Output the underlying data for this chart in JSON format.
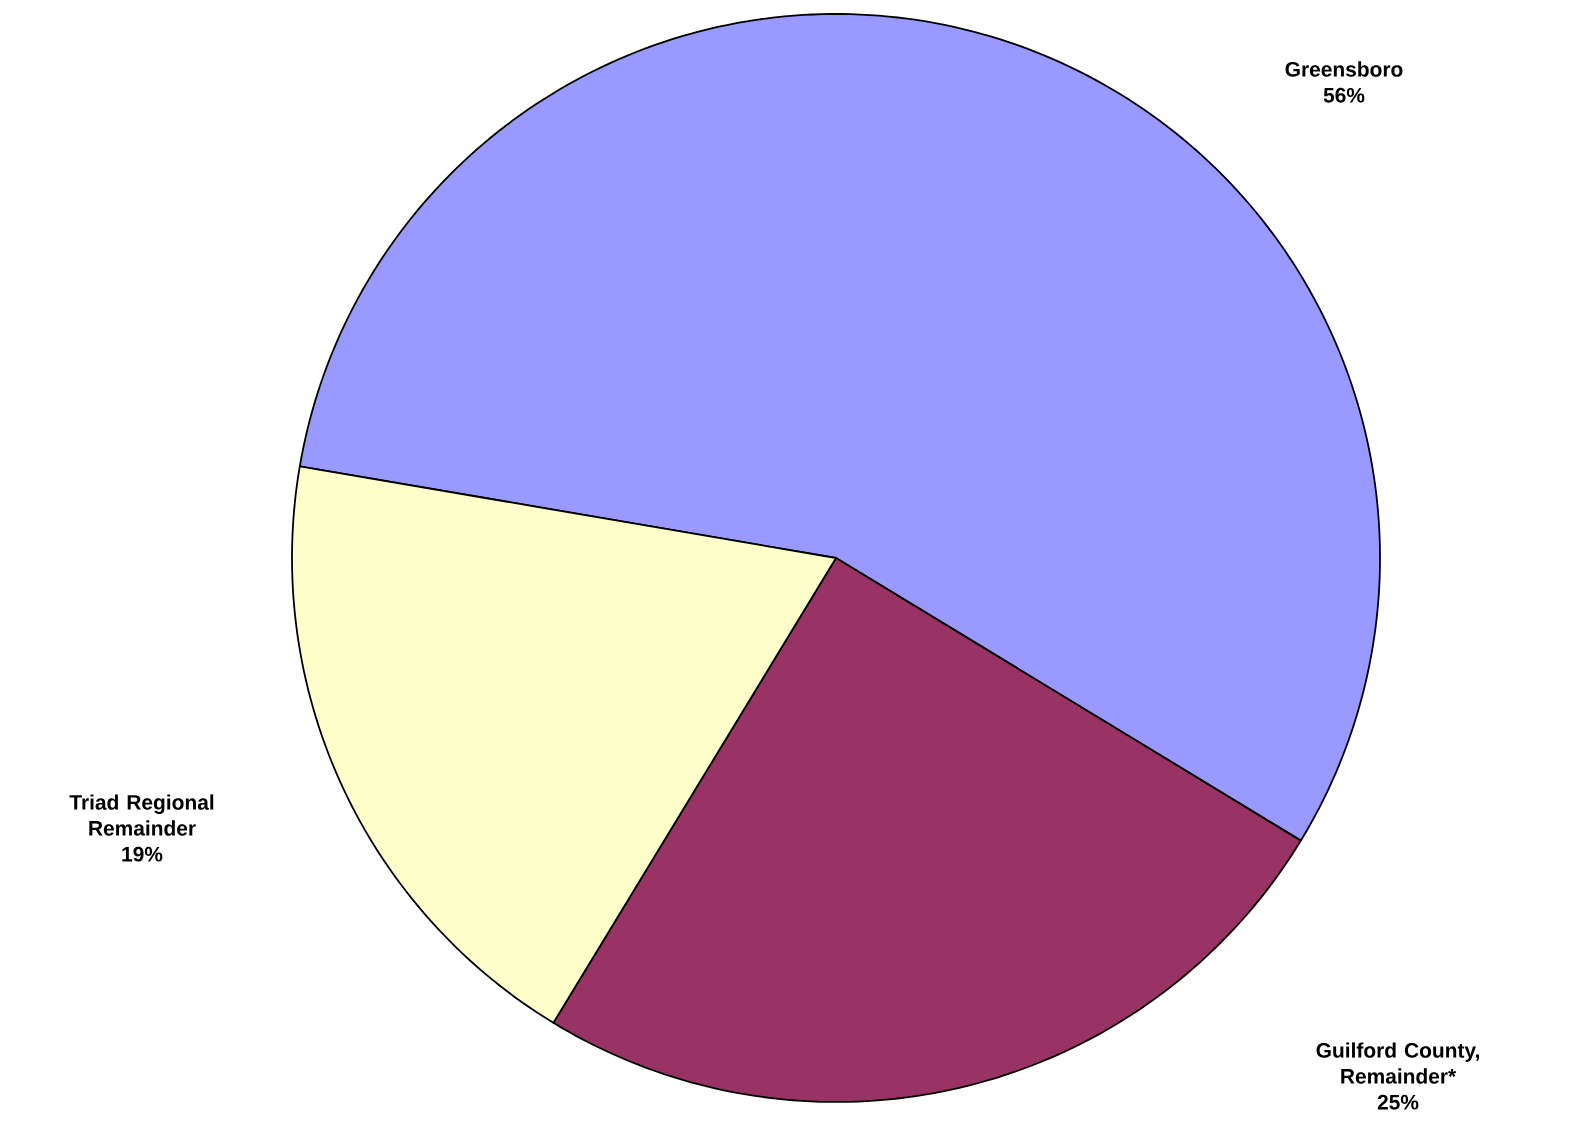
{
  "chart_data": {
    "type": "pie",
    "categories": [
      "Greensboro",
      "Guilford County, Remainder*",
      "Triad Regional Remainder"
    ],
    "values": [
      56,
      25,
      19
    ],
    "value_labels": [
      "56%",
      "25%",
      "19%"
    ],
    "colors": [
      "#9999ff",
      "#993366",
      "#ffffcc"
    ]
  }
}
